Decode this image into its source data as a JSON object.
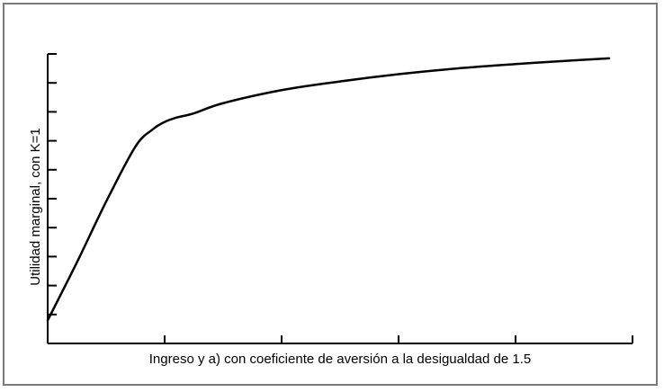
{
  "chart_data": {
    "type": "line",
    "title": "",
    "xlabel": "Ingreso y a) con coeficiente de aversión a la desigualdad de 1.5",
    "ylabel": "Utilidad marginal, con K=1",
    "xlim": [
      0,
      5
    ],
    "ylim": [
      0,
      10
    ],
    "x_ticks": [
      0,
      1,
      2,
      3,
      4,
      5
    ],
    "y_ticks": [
      0,
      1,
      2,
      3,
      4,
      5,
      6,
      7,
      8,
      9,
      10
    ],
    "tick_labels_shown": false,
    "grid": false,
    "series": [
      {
        "color": "#000000",
        "x": [
          0,
          0.25,
          0.5,
          0.75,
          0.9,
          1.0,
          1.1,
          1.25,
          1.5,
          2.0,
          2.5,
          3.0,
          3.5,
          4.0,
          4.5,
          4.8
        ],
        "y": [
          0.8,
          2.8,
          4.9,
          6.8,
          7.4,
          7.65,
          7.8,
          7.95,
          8.3,
          8.75,
          9.05,
          9.3,
          9.5,
          9.65,
          9.78,
          9.85
        ]
      }
    ]
  }
}
